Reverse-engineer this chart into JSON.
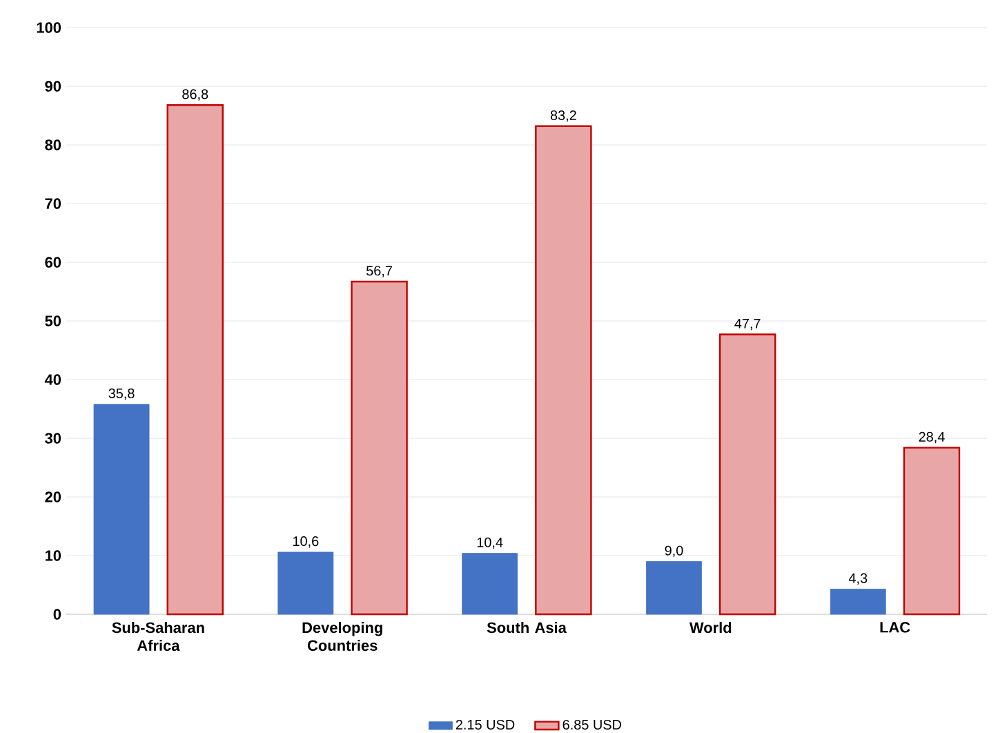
{
  "chart_data": {
    "type": "bar",
    "categories": [
      "Sub-Saharan Africa",
      "Developing Countries",
      "South Asia",
      "World",
      "LAC"
    ],
    "series": [
      {
        "name": "2.15 USD",
        "color": "#4472c4",
        "values": [
          35.8,
          10.6,
          10.4,
          9.0,
          4.3
        ],
        "value_labels": [
          "35,8",
          "10,6",
          "10,4",
          "9,0",
          "4,3"
        ]
      },
      {
        "name": "6.85 USD",
        "color": "#c00000",
        "values": [
          86.8,
          56.7,
          83.2,
          47.7,
          28.4
        ],
        "value_labels": [
          "86,8",
          "56,7",
          "83,2",
          "47,7",
          "28,4"
        ]
      }
    ],
    "ylim": [
      0,
      100
    ],
    "yticks": [
      0,
      10,
      20,
      30,
      40,
      50,
      60,
      70,
      80,
      90,
      100
    ],
    "grid": "y",
    "legend": "bottom"
  }
}
